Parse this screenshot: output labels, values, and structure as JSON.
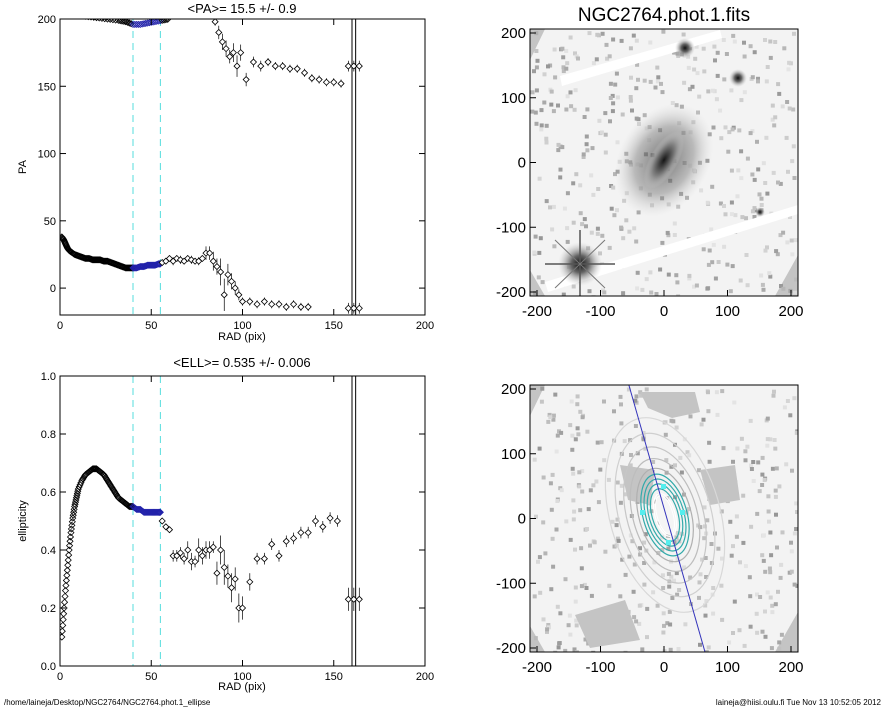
{
  "chart_data": [
    {
      "type": "scatter",
      "title": "<PA>=  15.5 +/-   0.9",
      "xlabel": "RAD (pix)",
      "ylabel": "PA",
      "xlim": [
        0,
        200
      ],
      "ylim": [
        -20,
        200
      ],
      "xticks": [
        "0",
        "50",
        "100",
        "150",
        "200"
      ],
      "yticks": [
        "0",
        "50",
        "100",
        "150",
        "200"
      ],
      "vlines_cyan": [
        40,
        55
      ],
      "vlines_black": [
        160,
        162
      ],
      "series": [
        {
          "style": "dense-black",
          "x": [
            1,
            2,
            3,
            4,
            5,
            6,
            8,
            10,
            12,
            14,
            16,
            18,
            20,
            22,
            24,
            26,
            28,
            30,
            32,
            34,
            36,
            38,
            40
          ],
          "y": [
            38,
            36,
            33,
            30,
            28,
            27,
            25,
            24,
            23,
            22,
            22,
            21,
            21,
            21,
            20,
            20,
            19,
            18,
            17,
            16,
            15,
            15,
            15
          ]
        },
        {
          "style": "blue-fit",
          "x": [
            40,
            42,
            44,
            46,
            48,
            50,
            52,
            54,
            55
          ],
          "y": [
            15,
            15,
            16,
            16,
            17,
            17,
            17,
            18,
            18
          ]
        },
        {
          "style": "points-errorbars",
          "x": [
            56,
            58,
            60,
            62,
            64,
            66,
            68,
            70,
            72,
            74,
            76,
            78,
            80,
            82,
            84,
            86,
            88,
            90,
            92,
            94,
            96,
            98,
            100,
            104,
            108,
            112,
            116,
            120,
            124,
            128,
            132,
            136
          ],
          "y": [
            19,
            20,
            22,
            20,
            22,
            21,
            20,
            22,
            21,
            20,
            20,
            22,
            26,
            26,
            20,
            16,
            12,
            -5,
            10,
            5,
            0,
            -5,
            -10,
            -10,
            -12,
            -10,
            -12,
            -12,
            -14,
            -12,
            -14,
            -14
          ],
          "err": [
            2,
            2,
            2,
            3,
            2,
            3,
            2,
            2,
            3,
            2,
            3,
            2,
            5,
            5,
            7,
            6,
            10,
            12,
            8,
            6,
            5,
            4,
            3,
            3,
            3,
            3,
            3,
            3,
            3,
            3,
            3,
            3
          ]
        },
        {
          "style": "points-errorbars",
          "x": [
            85,
            87,
            89,
            91,
            93,
            95,
            97,
            99,
            102,
            106,
            110,
            114,
            118,
            122,
            126,
            130,
            134,
            138,
            142,
            146,
            150,
            154
          ],
          "y": [
            198,
            190,
            183,
            178,
            172,
            175,
            165,
            175,
            155,
            168,
            165,
            168,
            165,
            165,
            163,
            163,
            160,
            156,
            155,
            153,
            153,
            152
          ],
          "err": [
            3,
            5,
            6,
            6,
            5,
            7,
            8,
            6,
            5,
            4,
            4,
            3,
            3,
            3,
            3,
            3,
            3,
            3,
            3,
            3,
            3,
            3
          ]
        },
        {
          "style": "points-errorbars",
          "x": [
            158,
            161,
            164
          ],
          "y": [
            -15,
            -15,
            -15
          ],
          "err": [
            4,
            4,
            4
          ]
        },
        {
          "style": "points-errorbars",
          "x": [
            158,
            161,
            164
          ],
          "y": [
            165,
            165,
            165
          ],
          "err": [
            4,
            4,
            4
          ]
        }
      ]
    },
    {
      "type": "scatter",
      "title": "<ELL>= 0.535 +/-  0.006",
      "xlabel": "RAD (pix)",
      "ylabel": "ellipticity",
      "xlim": [
        0,
        200
      ],
      "ylim": [
        0.0,
        1.0
      ],
      "xticks": [
        "0",
        "50",
        "100",
        "150",
        "200"
      ],
      "yticks": [
        "0.0",
        "0.2",
        "0.4",
        "0.6",
        "0.8",
        "1.0"
      ],
      "vlines_cyan": [
        40,
        55
      ],
      "vlines_black": [
        160,
        162
      ],
      "series": [
        {
          "style": "dense-black",
          "x": [
            1,
            2,
            3,
            4,
            5,
            6,
            7,
            8,
            9,
            10,
            12,
            14,
            16,
            18,
            20,
            22,
            24,
            26,
            28,
            30,
            32,
            34,
            36,
            38,
            40
          ],
          "y": [
            0.1,
            0.18,
            0.26,
            0.33,
            0.4,
            0.46,
            0.51,
            0.55,
            0.58,
            0.61,
            0.64,
            0.66,
            0.67,
            0.68,
            0.68,
            0.67,
            0.66,
            0.64,
            0.62,
            0.6,
            0.58,
            0.57,
            0.56,
            0.55,
            0.55
          ]
        },
        {
          "style": "blue-fit",
          "x": [
            40,
            42,
            44,
            46,
            48,
            50,
            52,
            54,
            55
          ],
          "y": [
            0.55,
            0.54,
            0.54,
            0.53,
            0.53,
            0.53,
            0.53,
            0.53,
            0.53
          ]
        },
        {
          "style": "points-errorbars",
          "x": [
            56,
            58,
            60,
            62,
            64,
            66,
            68,
            70,
            72,
            74,
            76,
            78,
            80,
            82,
            84,
            86,
            88,
            90,
            92,
            94,
            96,
            98,
            100,
            104,
            108,
            112,
            116,
            120,
            124,
            128,
            132,
            136,
            140,
            144,
            148,
            152
          ],
          "y": [
            0.5,
            0.48,
            0.47,
            0.38,
            0.38,
            0.39,
            0.37,
            0.4,
            0.36,
            0.36,
            0.4,
            0.38,
            0.4,
            0.4,
            0.41,
            0.32,
            0.4,
            0.34,
            0.31,
            0.27,
            0.3,
            0.2,
            0.2,
            0.29,
            0.37,
            0.37,
            0.42,
            0.38,
            0.43,
            0.44,
            0.46,
            0.46,
            0.5,
            0.48,
            0.51,
            0.5
          ],
          "err": [
            0.01,
            0.01,
            0.01,
            0.02,
            0.02,
            0.02,
            0.02,
            0.03,
            0.03,
            0.02,
            0.04,
            0.03,
            0.03,
            0.03,
            0.02,
            0.04,
            0.05,
            0.06,
            0.04,
            0.05,
            0.04,
            0.05,
            0.04,
            0.03,
            0.02,
            0.02,
            0.02,
            0.02,
            0.02,
            0.02,
            0.02,
            0.02,
            0.02,
            0.02,
            0.02,
            0.02
          ]
        },
        {
          "style": "points-errorbars",
          "x": [
            158,
            161,
            164
          ],
          "y": [
            0.23,
            0.23,
            0.23
          ],
          "err": [
            0.04,
            0.04,
            0.04
          ]
        }
      ]
    }
  ],
  "images": [
    {
      "title": "NGC2764.phot.1.fits",
      "xticks": [
        "-200",
        "-100",
        "0",
        "100",
        "200"
      ],
      "yticks": [
        "200",
        "100",
        "0",
        "-100",
        "-200"
      ]
    },
    {
      "title": "",
      "xticks": [
        "-200",
        "-100",
        "0",
        "100",
        "200"
      ],
      "yticks": [
        "200",
        "100",
        "0",
        "-100",
        "-200"
      ]
    }
  ],
  "footer": {
    "left": "/home/laineja/Desktop/NGC2764/NGC2764.phot.1_ellipse",
    "right": "laineja@hiisi.oulu.fi  Tue Nov 13 10:52:05 2012"
  },
  "colors": {
    "fit": "#2222aa",
    "cyan": "#55dddd",
    "axis": "#000000",
    "contour": "#cccccc",
    "teal": "#33aaaa"
  }
}
